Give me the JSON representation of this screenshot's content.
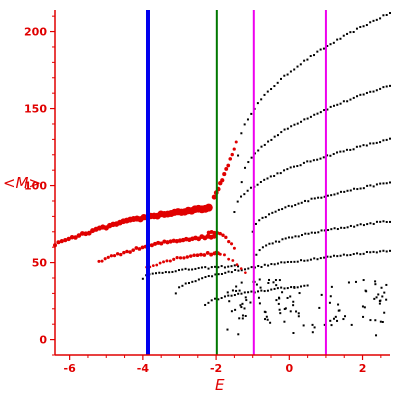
{
  "chart_data": {
    "type": "scatter",
    "title": "",
    "xlabel": "E",
    "ylabel": "<M>",
    "xlim": [
      -6.4,
      2.75
    ],
    "ylim": [
      -10,
      214
    ],
    "x_ticks": [
      -6,
      -4,
      -2,
      0,
      2
    ],
    "x_tick_labels": [
      "-6",
      "-4",
      "-2",
      "0",
      "2"
    ],
    "y_ticks": [
      0,
      50,
      100,
      150,
      200
    ],
    "y_tick_labels": [
      "0",
      "50",
      "100",
      "150",
      "200"
    ],
    "grid": false,
    "colors": {
      "axis": "#e00000",
      "red_points": "#e00000",
      "black_points": "#000000"
    },
    "vertical_lines": [
      {
        "x": -3.86,
        "color": "#0000ee"
      },
      {
        "x": -1.98,
        "color": "#007700"
      },
      {
        "x": -0.97,
        "color": "#ee00ee"
      },
      {
        "x": 1.0,
        "color": "#ee00ee"
      }
    ],
    "red_series": [
      {
        "x_start": -6.4,
        "x_end": -2.2,
        "y_start": 62,
        "y_end": 85,
        "bend": 4,
        "count": 46,
        "size_start": 2.0,
        "size_end": 4.0
      },
      {
        "x_start": -5.2,
        "x_end": -2.05,
        "y_start": 51,
        "y_end": 67,
        "bend": 3,
        "count": 38,
        "size_start": 1.5,
        "size_end": 2.5
      },
      {
        "x_start": -3.9,
        "x_end": -1.95,
        "y_start": 47,
        "y_end": 56,
        "bend": 2,
        "count": 22,
        "size_start": 1.3,
        "size_end": 2.0
      },
      {
        "x_start": -2.05,
        "x_end": -1.45,
        "y_start": 93,
        "y_end": 128,
        "bend": -2,
        "count": 12,
        "size_start": 2.5,
        "size_end": 1.5
      },
      {
        "x_start": -2.2,
        "x_end": -1.5,
        "y_start": 70,
        "y_end": 60,
        "bend": 3,
        "count": 10,
        "size_start": 2.0,
        "size_end": 1.5
      },
      {
        "x_start": -2.0,
        "x_end": -1.2,
        "y_start": 57,
        "y_end": 43,
        "bend": 2,
        "count": 8,
        "size_start": 1.5,
        "size_end": 1.3
      }
    ],
    "black_series": [
      {
        "x_start": -1.4,
        "x_end": 2.75,
        "y_start": 120,
        "y_end": 212
      },
      {
        "x_start": -1.3,
        "x_end": 2.75,
        "y_start": 102,
        "y_end": 165
      },
      {
        "x_start": -1.5,
        "x_end": 2.75,
        "y_start": 83,
        "y_end": 130
      },
      {
        "x_start": -1.0,
        "x_end": 2.75,
        "y_start": 70,
        "y_end": 102
      },
      {
        "x_start": -0.9,
        "x_end": 2.75,
        "y_start": 55,
        "y_end": 77
      },
      {
        "x_start": -3.1,
        "x_end": 2.75,
        "y_start": 30,
        "y_end": 58
      },
      {
        "x_start": -4.0,
        "x_end": -1.4,
        "y_start": 40,
        "y_end": 48
      },
      {
        "x_start": -2.3,
        "x_end": 0.5,
        "y_start": 22,
        "y_end": 35
      }
    ],
    "black_cluster": {
      "x_range": [
        -1.7,
        2.7
      ],
      "y_range": [
        0,
        40
      ],
      "count": 110
    }
  }
}
